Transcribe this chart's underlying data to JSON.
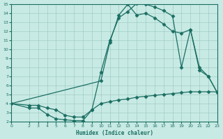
{
  "xlabel": "Humidex (Indice chaleur)",
  "background_color": "#c8eae4",
  "grid_color": "#a0ccc5",
  "line_color": "#1a6e62",
  "xlim": [
    0,
    23
  ],
  "ylim": [
    2,
    15
  ],
  "xticks": [
    0,
    2,
    3,
    4,
    5,
    6,
    7,
    8,
    9,
    10,
    11,
    12,
    13,
    14,
    15,
    16,
    17,
    18,
    19,
    20,
    21,
    22,
    23
  ],
  "yticks": [
    2,
    3,
    4,
    5,
    6,
    7,
    8,
    9,
    10,
    11,
    12,
    13,
    14,
    15
  ],
  "line1_x": [
    0,
    2,
    3,
    4,
    5,
    6,
    7,
    8,
    9,
    10,
    11,
    12,
    13,
    14,
    15,
    16,
    17,
    18,
    19,
    20,
    21,
    22,
    23
  ],
  "line1_y": [
    4.0,
    3.5,
    3.5,
    2.8,
    2.3,
    2.2,
    2.1,
    2.1,
    3.3,
    7.5,
    11.0,
    13.5,
    14.2,
    15.1,
    15.0,
    14.7,
    14.3,
    13.7,
    8.0,
    12.2,
    7.7,
    7.0,
    5.2
  ],
  "line2_x": [
    0,
    10,
    11,
    12,
    13,
    14,
    15,
    16,
    17,
    18,
    19,
    20,
    21,
    22,
    23
  ],
  "line2_y": [
    4.0,
    6.5,
    10.8,
    13.8,
    15.0,
    13.8,
    14.0,
    13.5,
    12.8,
    12.0,
    11.8,
    12.2,
    8.0,
    7.0,
    5.2
  ],
  "line3_x": [
    0,
    2,
    3,
    4,
    5,
    6,
    7,
    8,
    9,
    10,
    11,
    12,
    13,
    14,
    15,
    16,
    17,
    18,
    19,
    20,
    21,
    22,
    23
  ],
  "line3_y": [
    4.0,
    3.8,
    3.8,
    3.5,
    3.3,
    2.7,
    2.5,
    2.5,
    3.3,
    4.0,
    4.2,
    4.4,
    4.5,
    4.7,
    4.8,
    4.9,
    5.0,
    5.1,
    5.2,
    5.3,
    5.3,
    5.3,
    5.3
  ],
  "marker": "D",
  "markersize": 2.5,
  "linewidth": 0.9
}
